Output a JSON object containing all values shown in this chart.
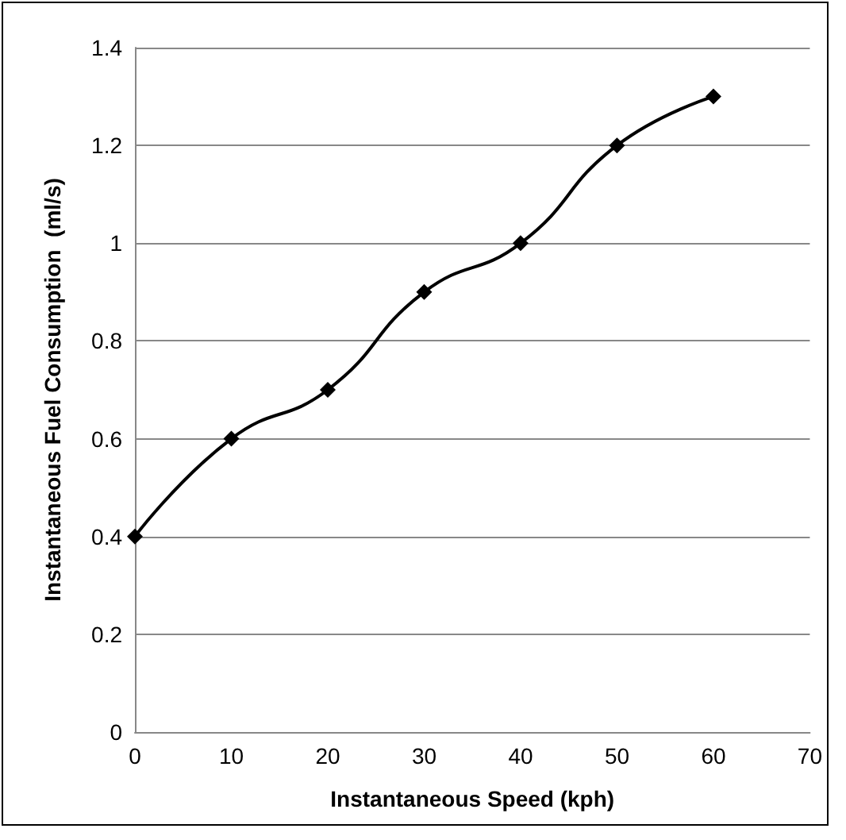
{
  "chart_data": {
    "type": "line",
    "xlabel": "Instantaneous Speed (kph)",
    "ylabel": "Instantaneous Fuel Consumption  (ml/s)",
    "x": [
      0,
      10,
      20,
      30,
      40,
      50,
      60
    ],
    "series": [
      {
        "color": "#000000",
        "values": [
          0.4,
          0.6,
          0.7,
          0.9,
          1.0,
          1.2,
          1.3
        ]
      }
    ],
    "xlim": [
      0,
      70
    ],
    "xticks": [
      0,
      10,
      20,
      30,
      40,
      50,
      60,
      70
    ],
    "ylim": [
      0,
      1.4
    ],
    "yticks": [
      0,
      0.2,
      0.4,
      0.6,
      0.8,
      1,
      1.2,
      1.4
    ],
    "grid": "y",
    "marker": "diamond",
    "line_style": "solid"
  }
}
